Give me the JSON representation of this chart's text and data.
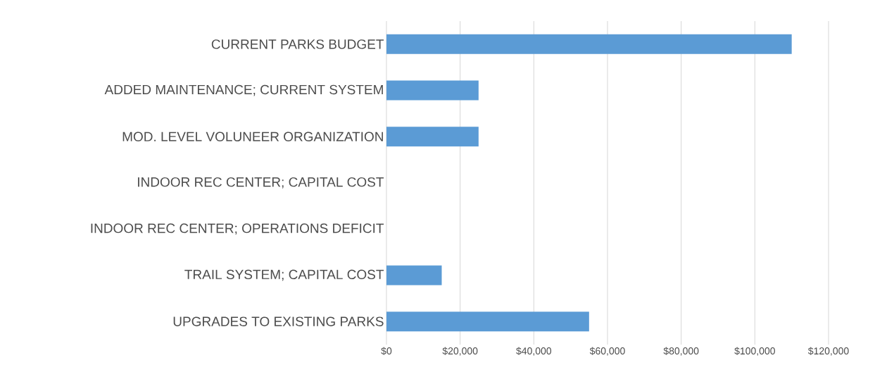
{
  "chart_data": {
    "type": "bar",
    "orientation": "horizontal",
    "categories": [
      "CURRENT PARKS BUDGET",
      "ADDED MAINTENANCE; CURRENT SYSTEM",
      "MOD. LEVEL VOLUNEER ORGANIZATION",
      "INDOOR REC CENTER; CAPITAL COST",
      "INDOOR REC CENTER; OPERATIONS DEFICIT",
      "TRAIL SYSTEM; CAPITAL COST",
      "UPGRADES TO EXISTING PARKS"
    ],
    "values": [
      110000,
      25000,
      25000,
      0,
      0,
      15000,
      55000
    ],
    "color": "#5b9bd5",
    "xlim": [
      0,
      120000
    ],
    "xticks": [
      {
        "value": 0,
        "label": "$0"
      },
      {
        "value": 20000,
        "label": "$20,000"
      },
      {
        "value": 40000,
        "label": "$40,000"
      },
      {
        "value": 60000,
        "label": "$60,000"
      },
      {
        "value": 80000,
        "label": "$80,000"
      },
      {
        "value": 100000,
        "label": "$100,000"
      },
      {
        "value": 120000,
        "label": "$120,000"
      }
    ],
    "grid": "x"
  }
}
